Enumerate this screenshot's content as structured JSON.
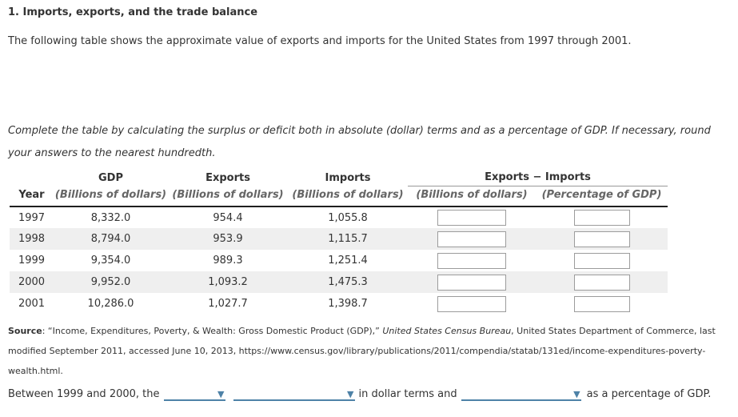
{
  "page": {
    "title": "1. Imports, exports, and the trade balance",
    "intro": "The following table shows the approximate value of exports and imports for the United States from 1997 through 2001.",
    "instruction": "Complete the table by calculating the surplus or deficit both in absolute (dollar) terms and as a percentage of GDP. If necessary, round your answers to the nearest hundredth."
  },
  "table": {
    "col_year": "Year",
    "col_gdp": "GDP",
    "col_exports": "Exports",
    "col_imports": "Imports",
    "group_header": "Exports − Imports",
    "unit_billions": "(Billions of dollars)",
    "unit_percentage": "(Percentage of GDP)",
    "rows": [
      {
        "year": "1997",
        "gdp": "8,332.0",
        "exports": "954.4",
        "imports": "1,055.8",
        "surplus_dollars": "",
        "surplus_pct": ""
      },
      {
        "year": "1998",
        "gdp": "8,794.0",
        "exports": "953.9",
        "imports": "1,115.7",
        "surplus_dollars": "",
        "surplus_pct": ""
      },
      {
        "year": "1999",
        "gdp": "9,354.0",
        "exports": "989.3",
        "imports": "1,251.4",
        "surplus_dollars": "",
        "surplus_pct": ""
      },
      {
        "year": "2000",
        "gdp": "9,952.0",
        "exports": "1,093.2",
        "imports": "1,475.3",
        "surplus_dollars": "",
        "surplus_pct": ""
      },
      {
        "year": "2001",
        "gdp": "10,286.0",
        "exports": "1,027.7",
        "imports": "1,398.7",
        "surplus_dollars": "",
        "surplus_pct": ""
      }
    ]
  },
  "source": {
    "label": "Source",
    "part1": ": “Income, Expenditures, Poverty, & Wealth: Gross Domestic Product (GDP),” ",
    "italic1": "United States Census Bureau",
    "part2": ", United States Department of Commerce, last modified September 2011, accessed June 10, 2013, https://www.census.gov/library/publications/2011/compendia/statab/131ed/income-expenditures-poverty-wealth.html."
  },
  "question": {
    "prefix": "Between 1999 and 2000, the",
    "middle": "in dollar terms and",
    "suffix": "as a percentage of GDP.",
    "dropdown_arrow": "▼",
    "dropdown1_value": "",
    "dropdown2_value": "",
    "dropdown3_value": ""
  },
  "colors": {
    "accent_blue": "#4e82a7",
    "row_stripe": "#efefef",
    "text": "#333333",
    "unit_text": "#666666"
  }
}
